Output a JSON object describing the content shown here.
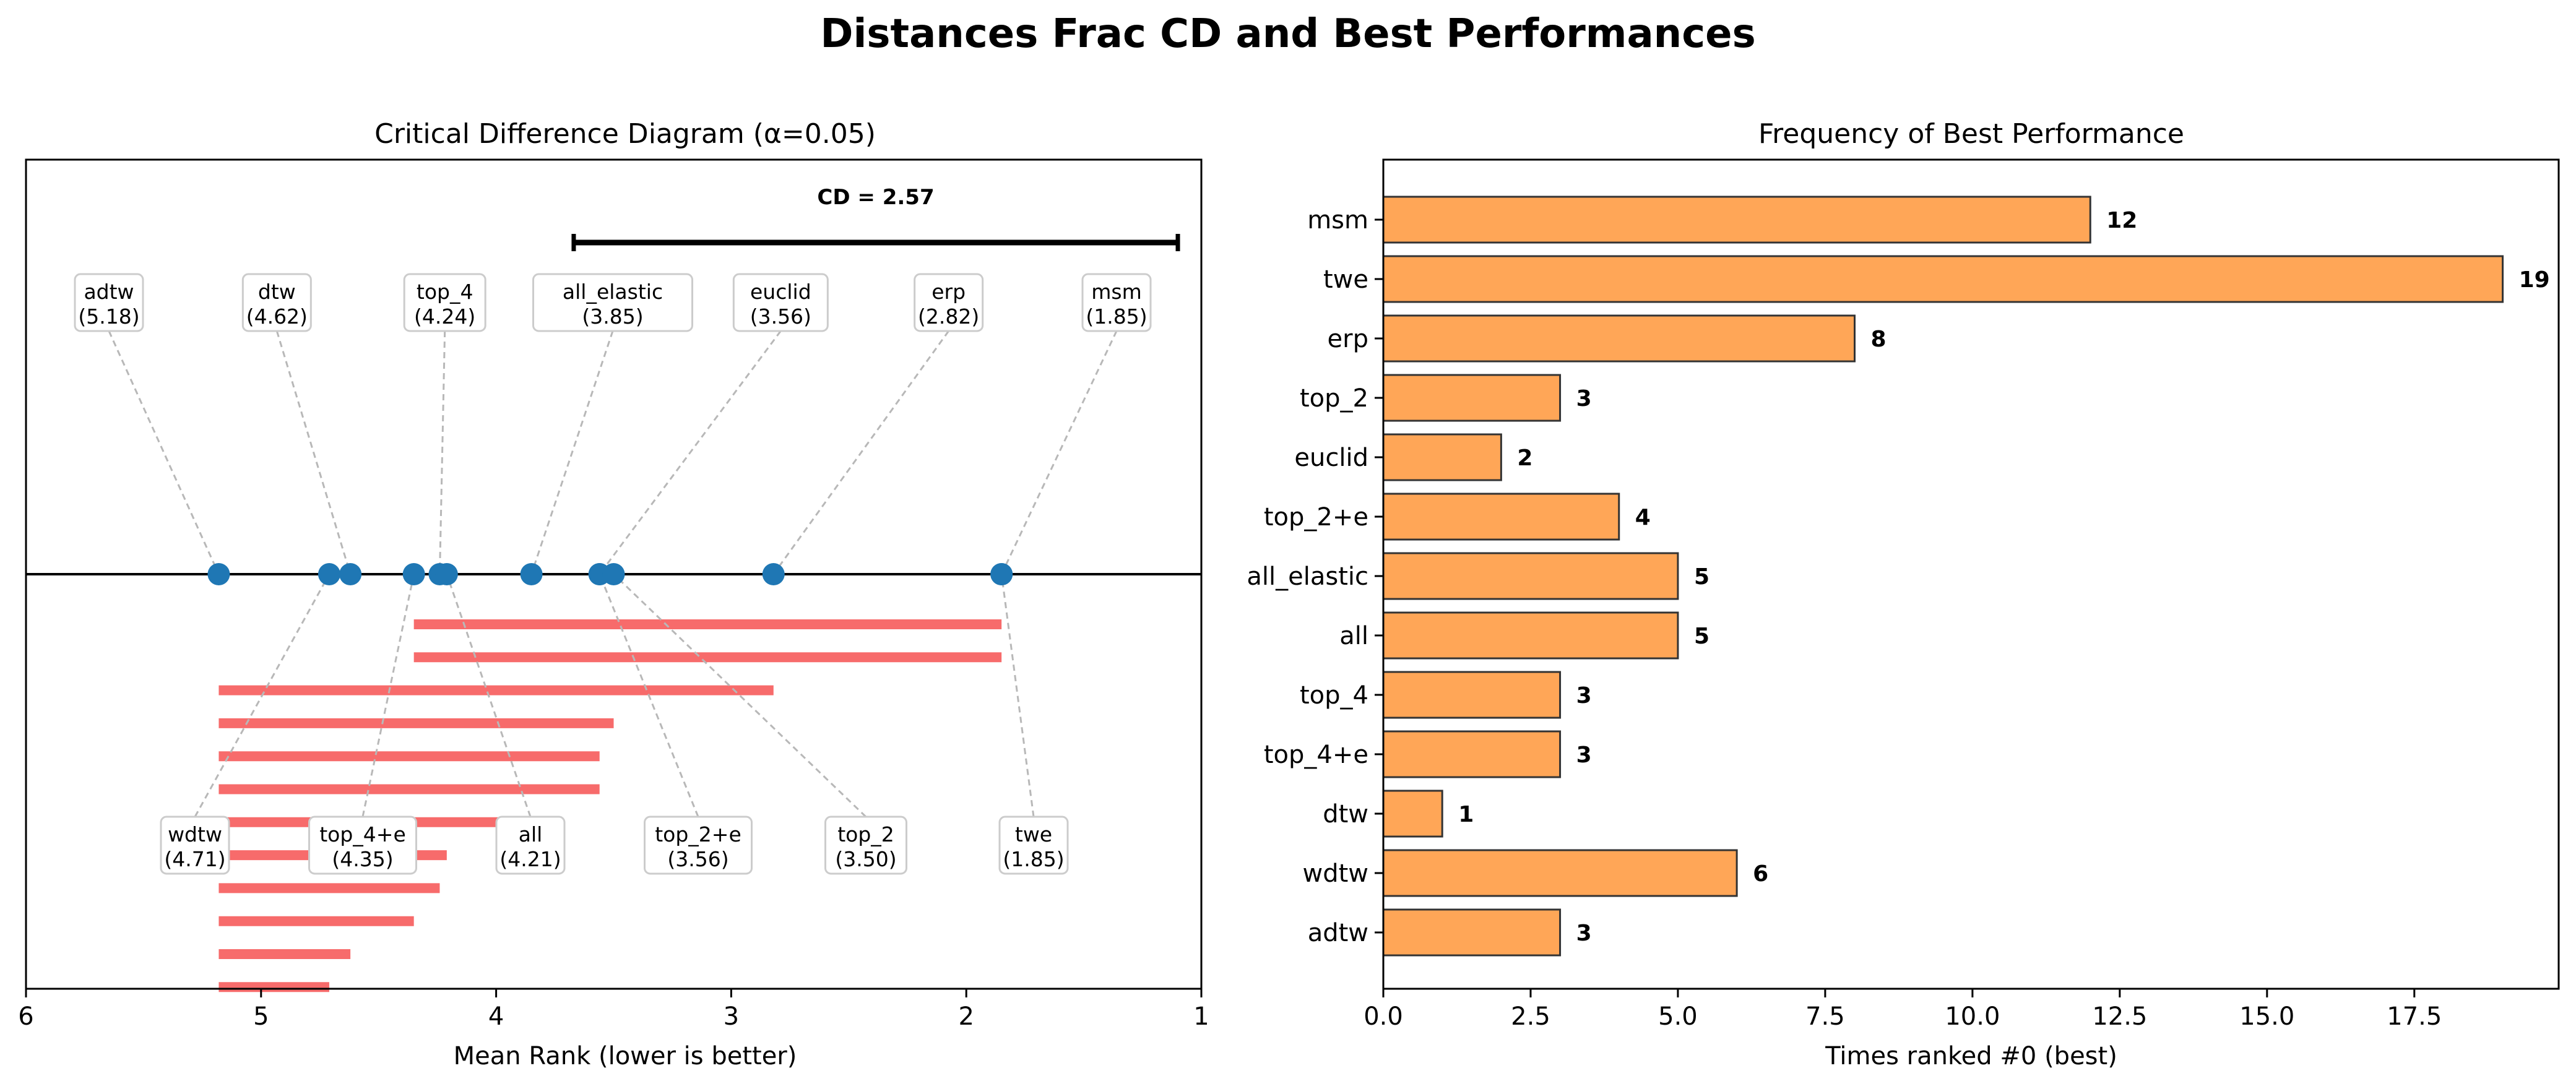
{
  "figure": {
    "title": "Distances Frac CD and Best Performances"
  },
  "colors": {
    "dot": "#1f77b4",
    "cd_bar": "#f76b6b",
    "bar_fill": "#ffa657",
    "bar_edge": "#333333",
    "axis": "#000000",
    "leader": "#b8b8b8",
    "label_box_edge": "#cccccc"
  },
  "chart_data": [
    {
      "type": "critical-difference",
      "title": "Critical Difference Diagram (α=0.05)",
      "xlabel": "Mean Rank (lower is better)",
      "xlim": [
        6,
        1
      ],
      "xticks": [
        "6",
        "5",
        "4",
        "3",
        "2",
        "1"
      ],
      "cd": {
        "value": 2.57,
        "label": "CD = 2.57"
      },
      "methods_top": [
        {
          "name": "adtw",
          "rank": 5.18,
          "rank_label": "(5.18)"
        },
        {
          "name": "dtw",
          "rank": 4.62,
          "rank_label": "(4.62)"
        },
        {
          "name": "top_4",
          "rank": 4.24,
          "rank_label": "(4.24)"
        },
        {
          "name": "all_elastic",
          "rank": 3.85,
          "rank_label": "(3.85)"
        },
        {
          "name": "euclid",
          "rank": 3.56,
          "rank_label": "(3.56)"
        },
        {
          "name": "erp",
          "rank": 2.82,
          "rank_label": "(2.82)"
        },
        {
          "name": "msm",
          "rank": 1.85,
          "rank_label": "(1.85)"
        }
      ],
      "methods_bottom": [
        {
          "name": "wdtw",
          "rank": 4.71,
          "rank_label": "(4.71)"
        },
        {
          "name": "top_4+e",
          "rank": 4.35,
          "rank_label": "(4.35)"
        },
        {
          "name": "all",
          "rank": 4.21,
          "rank_label": "(4.21)"
        },
        {
          "name": "top_2+e",
          "rank": 3.56,
          "rank_label": "(3.56)"
        },
        {
          "name": "top_2",
          "rank": 3.5,
          "rank_label": "(3.50)"
        },
        {
          "name": "twe",
          "rank": 1.85,
          "rank_label": "(1.85)"
        }
      ],
      "cliques": [
        [
          4.35,
          1.85
        ],
        [
          4.35,
          1.85
        ],
        [
          5.18,
          2.82
        ],
        [
          5.18,
          3.5
        ],
        [
          5.18,
          3.56
        ],
        [
          5.18,
          3.56
        ],
        [
          5.18,
          3.85
        ],
        [
          5.18,
          4.21
        ],
        [
          5.18,
          4.24
        ],
        [
          5.18,
          4.35
        ],
        [
          5.18,
          4.62
        ],
        [
          5.18,
          4.71
        ]
      ]
    },
    {
      "type": "bar",
      "orientation": "horizontal",
      "title": "Frequency of Best Performance",
      "xlabel": "Times ranked #0 (best)",
      "xlim": [
        0,
        19.95
      ],
      "xticks": [
        0,
        2.5,
        5,
        7.5,
        10,
        12.5,
        15,
        17.5
      ],
      "xtick_labels": [
        "0.0",
        "2.5",
        "5.0",
        "7.5",
        "10.0",
        "12.5",
        "15.0",
        "17.5"
      ],
      "categories": [
        "msm",
        "twe",
        "erp",
        "top_2",
        "euclid",
        "top_2+e",
        "all_elastic",
        "all",
        "top_4",
        "top_4+e",
        "dtw",
        "wdtw",
        "adtw"
      ],
      "values": [
        12,
        19,
        8,
        3,
        2,
        4,
        5,
        5,
        3,
        3,
        1,
        6,
        3
      ]
    }
  ]
}
